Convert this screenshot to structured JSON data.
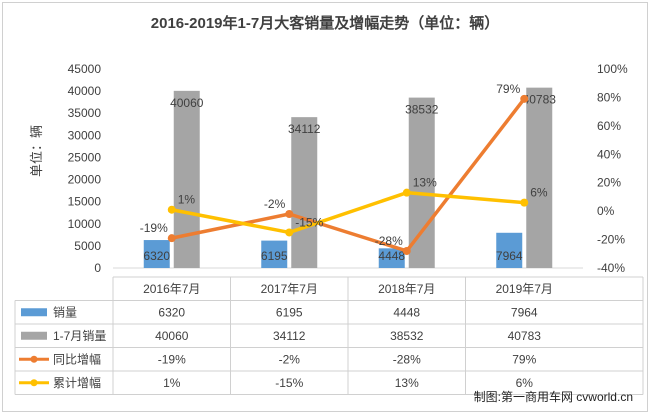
{
  "chart_data": {
    "type": "bar",
    "title": "2016-2019年1-7月大客销量及增幅走势（单位：辆）",
    "ylabel": "单位：辆",
    "categories": [
      "2016年7月",
      "2017年7月",
      "2018年7月",
      "2019年7月"
    ],
    "ylim": [
      0,
      45000
    ],
    "y_ticks": [
      "45000",
      "40000",
      "35000",
      "30000",
      "25000",
      "20000",
      "15000",
      "10000",
      "5000",
      "0"
    ],
    "y2lim": [
      -40,
      100
    ],
    "y2_ticks": [
      "100%",
      "80%",
      "60%",
      "40%",
      "20%",
      "0%",
      "-20%",
      "-40%"
    ],
    "grid": false,
    "series": [
      {
        "name": "销量",
        "kind": "bar",
        "axis": "left",
        "color": "#5b9bd5",
        "values": [
          6320,
          6195,
          4448,
          7964
        ],
        "labels": [
          "6320",
          "6195",
          "4448",
          "7964"
        ]
      },
      {
        "name": "1-7月销量",
        "kind": "bar",
        "axis": "left",
        "color": "#a5a5a5",
        "values": [
          40060,
          34112,
          38532,
          40783
        ],
        "labels": [
          "40060",
          "34112",
          "38532",
          "40783"
        ]
      },
      {
        "name": "同比增幅",
        "kind": "line",
        "axis": "right",
        "color": "#ed7d31",
        "values": [
          -19,
          -2,
          -28,
          79
        ],
        "labels": [
          "-19%",
          "-2%",
          "-28%",
          "79%"
        ]
      },
      {
        "name": "累计增幅",
        "kind": "line",
        "axis": "right",
        "color": "#ffc000",
        "values": [
          1,
          -15,
          13,
          6
        ],
        "labels": [
          "1%",
          "-15%",
          "13%",
          "6%"
        ]
      }
    ],
    "legend": "data-table-below"
  },
  "source": "制图:第一商用车网 cvworld.cn"
}
